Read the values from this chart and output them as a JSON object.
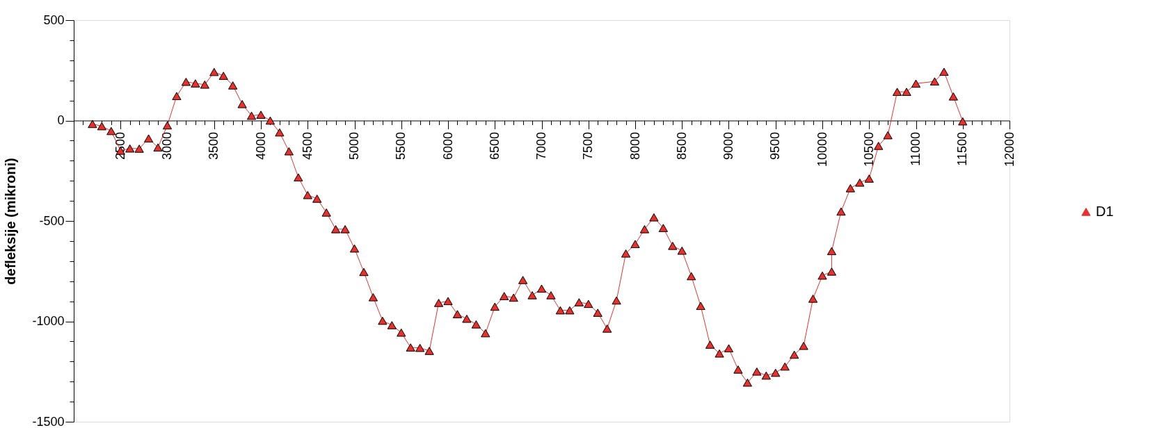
{
  "chart_data": {
    "type": "line",
    "ylabel": "defleksije (mikroni)",
    "xlim": [
      2000,
      12000
    ],
    "ylim": [
      -1500,
      500
    ],
    "xticks": [
      {
        "value": 2000,
        "label": null
      },
      {
        "value": 2100,
        "label": null
      },
      {
        "value": 2200,
        "label": null
      },
      {
        "value": 2300,
        "label": null
      },
      {
        "value": 2400,
        "label": null
      },
      2500,
      {
        "value": 2600,
        "label": null
      },
      {
        "value": 2700,
        "label": null
      },
      {
        "value": 2800,
        "label": null
      },
      {
        "value": 2900,
        "label": null
      },
      3000,
      {
        "value": 3100,
        "label": null
      },
      {
        "value": 3200,
        "label": null
      },
      {
        "value": 3300,
        "label": null
      },
      {
        "value": 3400,
        "label": null
      },
      3500,
      {
        "value": 3600,
        "label": null
      },
      {
        "value": 3700,
        "label": null
      },
      {
        "value": 3800,
        "label": null
      },
      {
        "value": 3900,
        "label": null
      },
      4000,
      {
        "value": 4100,
        "label": null
      },
      {
        "value": 4200,
        "label": null
      },
      {
        "value": 4300,
        "label": null
      },
      {
        "value": 4400,
        "label": null
      },
      4500,
      {
        "value": 4600,
        "label": null
      },
      {
        "value": 4700,
        "label": null
      },
      {
        "value": 4800,
        "label": null
      },
      {
        "value": 4900,
        "label": null
      },
      5000,
      {
        "value": 5100,
        "label": null
      },
      {
        "value": 5200,
        "label": null
      },
      {
        "value": 5300,
        "label": null
      },
      {
        "value": 5400,
        "label": null
      },
      5500,
      {
        "value": 5600,
        "label": null
      },
      {
        "value": 5700,
        "label": null
      },
      {
        "value": 5800,
        "label": null
      },
      {
        "value": 5900,
        "label": null
      },
      6000,
      {
        "value": 6100,
        "label": null
      },
      {
        "value": 6200,
        "label": null
      },
      {
        "value": 6300,
        "label": null
      },
      {
        "value": 6400,
        "label": null
      },
      6500,
      {
        "value": 6600,
        "label": null
      },
      {
        "value": 6700,
        "label": null
      },
      {
        "value": 6800,
        "label": null
      },
      {
        "value": 6900,
        "label": null
      },
      7000,
      {
        "value": 7100,
        "label": null
      },
      {
        "value": 7200,
        "label": null
      },
      {
        "value": 7300,
        "label": null
      },
      {
        "value": 7400,
        "label": null
      },
      7500,
      {
        "value": 7600,
        "label": null
      },
      {
        "value": 7700,
        "label": null
      },
      {
        "value": 7800,
        "label": null
      },
      {
        "value": 7900,
        "label": null
      },
      8000,
      {
        "value": 8100,
        "label": null
      },
      {
        "value": 8200,
        "label": null
      },
      {
        "value": 8300,
        "label": null
      },
      {
        "value": 8400,
        "label": null
      },
      8500,
      {
        "value": 8600,
        "label": null
      },
      {
        "value": 8700,
        "label": null
      },
      {
        "value": 8800,
        "label": null
      },
      {
        "value": 8900,
        "label": null
      },
      9000,
      {
        "value": 9100,
        "label": null
      },
      {
        "value": 9200,
        "label": null
      },
      {
        "value": 9300,
        "label": null
      },
      {
        "value": 9400,
        "label": null
      },
      9500,
      {
        "value": 9600,
        "label": null
      },
      {
        "value": 9700,
        "label": null
      },
      {
        "value": 9800,
        "label": null
      },
      {
        "value": 9900,
        "label": null
      },
      10000,
      {
        "value": 10100,
        "label": null
      },
      {
        "value": 10200,
        "label": null
      },
      {
        "value": 10300,
        "label": null
      },
      {
        "value": 10400,
        "label": null
      },
      10500,
      {
        "value": 10600,
        "label": null
      },
      {
        "value": 10700,
        "label": null
      },
      {
        "value": 10800,
        "label": null
      },
      {
        "value": 10900,
        "label": null
      },
      11000,
      {
        "value": 11100,
        "label": null
      },
      {
        "value": 11200,
        "label": null
      },
      {
        "value": 11300,
        "label": null
      },
      {
        "value": 11400,
        "label": null
      },
      11500,
      {
        "value": 11600,
        "label": null
      },
      {
        "value": 11700,
        "label": null
      },
      {
        "value": 11800,
        "label": null
      },
      {
        "value": 11900,
        "label": null
      },
      12000
    ],
    "yticks": [
      -1500,
      {
        "value": -1400,
        "label": null
      },
      {
        "value": -1300,
        "label": null
      },
      {
        "value": -1200,
        "label": null
      },
      {
        "value": -1100,
        "label": null
      },
      -1000,
      {
        "value": -900,
        "label": null
      },
      {
        "value": -800,
        "label": null
      },
      {
        "value": -700,
        "label": null
      },
      {
        "value": -600,
        "label": null
      },
      -500,
      {
        "value": -400,
        "label": null
      },
      {
        "value": -300,
        "label": null
      },
      {
        "value": -200,
        "label": null
      },
      {
        "value": -100,
        "label": null
      },
      0,
      {
        "value": 100,
        "label": null
      },
      {
        "value": 200,
        "label": null
      },
      {
        "value": 300,
        "label": null
      },
      {
        "value": 400,
        "label": null
      },
      500
    ],
    "grid": false,
    "legend": "right",
    "marker": "triangle",
    "line_style": "solid",
    "series": [
      {
        "name": "D1",
        "color": "#e8302c",
        "x": [
          2200,
          2300,
          2400,
          2500,
          2600,
          2700,
          2800,
          2900,
          3000,
          3100,
          3200,
          3300,
          3400,
          3500,
          3600,
          3700,
          3800,
          3900,
          4000,
          4100,
          4200,
          4300,
          4400,
          4500,
          4600,
          4700,
          4800,
          4900,
          5000,
          5100,
          5200,
          5300,
          5400,
          5500,
          5600,
          5700,
          5800,
          5900,
          6000,
          6100,
          6200,
          6300,
          6400,
          6500,
          6600,
          6700,
          6800,
          6900,
          7000,
          7100,
          7200,
          7300,
          7400,
          7500,
          7600,
          7700,
          7800,
          7900,
          8000,
          8100,
          8200,
          8300,
          8400,
          8500,
          8600,
          8700,
          8800,
          8900,
          9000,
          9100,
          9200,
          9300,
          9400,
          9500,
          9600,
          9700,
          9800,
          9900,
          10000,
          10100,
          10100,
          10200,
          10300,
          10400,
          10500,
          10600,
          10700,
          10800,
          10900,
          11000,
          11200,
          11300,
          11400,
          11500
        ],
        "values": [
          -17,
          -28,
          -52,
          -150,
          -139,
          -140,
          -89,
          -134,
          -24,
          122,
          193,
          185,
          179,
          242,
          223,
          175,
          82,
          24,
          29,
          0,
          -59,
          -153,
          -283,
          -371,
          -389,
          -458,
          -541,
          -541,
          -637,
          -754,
          -880,
          -997,
          -1019,
          -1056,
          -1130,
          -1132,
          -1147,
          -908,
          -899,
          -964,
          -987,
          -1015,
          -1059,
          -927,
          -874,
          -882,
          -794,
          -870,
          -837,
          -870,
          -945,
          -945,
          -905,
          -913,
          -957,
          -1036,
          -896,
          -662,
          -615,
          -541,
          -482,
          -535,
          -624,
          -648,
          -775,
          -923,
          -1116,
          -1160,
          -1134,
          -1240,
          -1305,
          -1250,
          -1270,
          -1256,
          -1225,
          -1166,
          -1122,
          -887,
          -772,
          -752,
          -650,
          -453,
          -337,
          -309,
          -289,
          -126,
          -73,
          143,
          143,
          184,
          195,
          243,
          120,
          -4
        ]
      }
    ]
  }
}
